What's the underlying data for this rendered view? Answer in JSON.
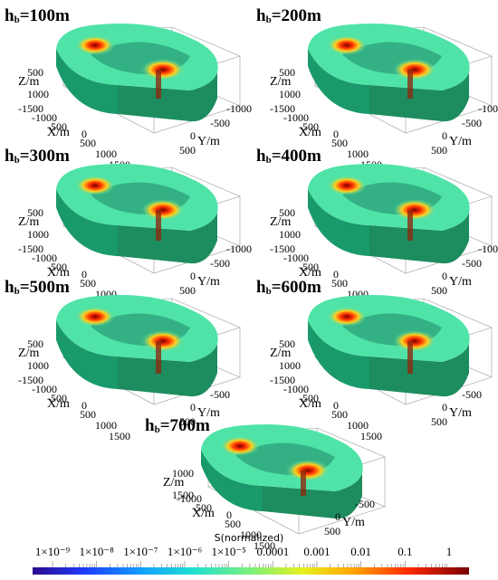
{
  "panels": [
    {
      "title_main": "h",
      "title_sub": "b",
      "title_rest": "=100m"
    },
    {
      "title_main": "h",
      "title_sub": "b",
      "title_rest": "=200m"
    },
    {
      "title_main": "h",
      "title_sub": "b",
      "title_rest": "=300m"
    },
    {
      "title_main": "h",
      "title_sub": "b",
      "title_rest": "=400m"
    },
    {
      "title_main": "h",
      "title_sub": "b",
      "title_rest": "=500m"
    },
    {
      "title_main": "h",
      "title_sub": "b",
      "title_rest": "=600m"
    },
    {
      "title_main": "h",
      "title_sub": "b",
      "title_rest": "=700m"
    }
  ],
  "axes": {
    "z_label": "Z/m",
    "x_label": "X/m",
    "y_label": "Y/m",
    "z_ticks": [
      "500",
      "1000"
    ],
    "x_ticks": [
      "-1500",
      "-1000",
      "-500",
      "0",
      "500",
      "1000",
      "1500"
    ],
    "y_ticks": [
      "-1000",
      "-500",
      "0",
      "500"
    ],
    "z_ticks_700": [
      "1000",
      "1500"
    ]
  },
  "colorbar": {
    "title": "S(normalized)",
    "ticks": [
      "1×10⁻⁹",
      "1×10⁻⁸",
      "1×10⁻⁷",
      "1×10⁻⁶",
      "1×10⁻⁵",
      "0.0001",
      "0.001",
      "0.01",
      "0.1",
      "1"
    ],
    "colors": [
      "#2a0a8c",
      "#1e3cff",
      "#12a0ff",
      "#20e0d0",
      "#7af07a",
      "#e8f020",
      "#ffa000",
      "#ff2a00",
      "#7a0000"
    ]
  }
}
